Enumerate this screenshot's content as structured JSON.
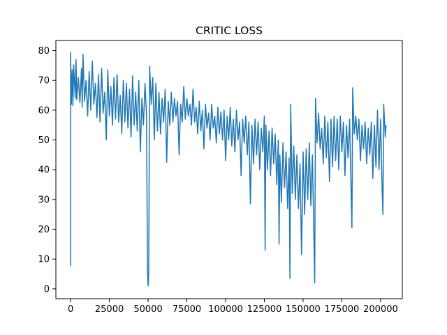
{
  "chart_data": {
    "type": "line",
    "title": "CRITIC LOSS",
    "xlabel": "",
    "ylabel": "",
    "xlim": [
      -9500,
      214000
    ],
    "ylim": [
      -3.3,
      83.4
    ],
    "xticks": [
      0,
      25000,
      50000,
      75000,
      100000,
      125000,
      150000,
      175000,
      200000
    ],
    "xtick_labels": [
      "0",
      "25000",
      "50000",
      "75000",
      "100000",
      "125000",
      "150000",
      "175000",
      "200000"
    ],
    "yticks": [
      0,
      10,
      20,
      30,
      40,
      50,
      60,
      70,
      80
    ],
    "ytick_labels": [
      "0",
      "10",
      "20",
      "30",
      "40",
      "50",
      "60",
      "70",
      "80"
    ],
    "grid": false,
    "series": [
      {
        "color": "#1f77b4",
        "points": [
          [
            0,
            7.7
          ],
          [
            0,
            79.4
          ],
          [
            500,
            62.0
          ],
          [
            1000,
            73.5
          ],
          [
            1500,
            61.5
          ],
          [
            2000,
            75.2
          ],
          [
            3000,
            64.0
          ],
          [
            3500,
            77.0
          ],
          [
            4000,
            63.5
          ],
          [
            5000,
            71.0
          ],
          [
            6000,
            62.5
          ],
          [
            7000,
            74.0
          ],
          [
            7500,
            61.0
          ],
          [
            8000,
            78.8
          ],
          [
            9000,
            63.0
          ],
          [
            10000,
            70.0
          ],
          [
            11000,
            58.0
          ],
          [
            12000,
            73.0
          ],
          [
            13000,
            60.0
          ],
          [
            14000,
            76.5
          ],
          [
            15000,
            62.0
          ],
          [
            16000,
            69.0
          ],
          [
            17000,
            57.5
          ],
          [
            18000,
            72.0
          ],
          [
            19000,
            56.0
          ],
          [
            20000,
            74.0
          ],
          [
            21000,
            59.0
          ],
          [
            22000,
            66.0
          ],
          [
            23000,
            50.0
          ],
          [
            24000,
            73.5
          ],
          [
            25000,
            58.0
          ],
          [
            26000,
            68.0
          ],
          [
            27000,
            55.0
          ],
          [
            28000,
            71.0
          ],
          [
            29000,
            57.0
          ],
          [
            30000,
            72.0
          ],
          [
            31000,
            56.0
          ],
          [
            32000,
            65.0
          ],
          [
            33000,
            52.0
          ],
          [
            34000,
            70.0
          ],
          [
            35000,
            56.0
          ],
          [
            36000,
            69.0
          ],
          [
            37000,
            54.0
          ],
          [
            38000,
            67.0
          ],
          [
            39000,
            51.0
          ],
          [
            40000,
            71.5
          ],
          [
            41000,
            55.0
          ],
          [
            42000,
            66.0
          ],
          [
            43000,
            53.0
          ],
          [
            44000,
            70.0
          ],
          [
            45000,
            46.0
          ],
          [
            46000,
            64.0
          ],
          [
            47000,
            55.0
          ],
          [
            48000,
            69.0
          ],
          [
            49000,
            58.0
          ],
          [
            49600,
            6.0
          ],
          [
            50000,
            1.0
          ],
          [
            50400,
            5.0
          ],
          [
            51000,
            74.8
          ],
          [
            52000,
            62.0
          ],
          [
            53000,
            71.0
          ],
          [
            54000,
            50.0
          ],
          [
            55000,
            69.0
          ],
          [
            56000,
            53.0
          ],
          [
            57000,
            66.0
          ],
          [
            58000,
            52.0
          ],
          [
            59000,
            64.0
          ],
          [
            60000,
            56.0
          ],
          [
            61000,
            67.0
          ],
          [
            62000,
            42.5
          ],
          [
            63000,
            63.0
          ],
          [
            64000,
            55.0
          ],
          [
            65000,
            66.0
          ],
          [
            66000,
            56.0
          ],
          [
            67000,
            64.0
          ],
          [
            68000,
            58.0
          ],
          [
            69000,
            63.0
          ],
          [
            70000,
            45.0
          ],
          [
            71000,
            62.0
          ],
          [
            72000,
            56.0
          ],
          [
            73000,
            68.0
          ],
          [
            74000,
            57.0
          ],
          [
            75000,
            64.0
          ],
          [
            76000,
            58.0
          ],
          [
            77000,
            62.0
          ],
          [
            78000,
            55.0
          ],
          [
            79000,
            67.0
          ],
          [
            80000,
            56.0
          ],
          [
            81000,
            61.0
          ],
          [
            82000,
            52.0
          ],
          [
            83000,
            63.0
          ],
          [
            84000,
            53.0
          ],
          [
            85000,
            60.0
          ],
          [
            86000,
            47.0
          ],
          [
            87000,
            62.0
          ],
          [
            88000,
            54.0
          ],
          [
            89000,
            59.0
          ],
          [
            90000,
            50.0
          ],
          [
            91000,
            62.0
          ],
          [
            92000,
            54.0
          ],
          [
            93000,
            58.0
          ],
          [
            94000,
            49.0
          ],
          [
            95000,
            61.0
          ],
          [
            96000,
            52.0
          ],
          [
            97000,
            59.5
          ],
          [
            98000,
            50.0
          ],
          [
            99000,
            60.0
          ],
          [
            100000,
            43.0
          ],
          [
            101000,
            58.0
          ],
          [
            102000,
            50.0
          ],
          [
            103000,
            61.0
          ],
          [
            104000,
            48.0
          ],
          [
            105000,
            57.0
          ],
          [
            106000,
            46.0
          ],
          [
            107000,
            60.0
          ],
          [
            108000,
            50.0
          ],
          [
            109000,
            56.0
          ],
          [
            110000,
            38.0
          ],
          [
            111000,
            57.0
          ],
          [
            112000,
            49.0
          ],
          [
            113000,
            58.0
          ],
          [
            114000,
            45.0
          ],
          [
            115000,
            56.0
          ],
          [
            116000,
            28.5
          ],
          [
            117000,
            55.0
          ],
          [
            118000,
            42.0
          ],
          [
            119000,
            57.0
          ],
          [
            120000,
            45.0
          ],
          [
            121000,
            56.0
          ],
          [
            122000,
            40.0
          ],
          [
            123000,
            54.0
          ],
          [
            124000,
            46.0
          ],
          [
            125000,
            58.0
          ],
          [
            125500,
            13.0
          ],
          [
            126000,
            55.0
          ],
          [
            127000,
            40.0
          ],
          [
            128000,
            53.0
          ],
          [
            129000,
            38.0
          ],
          [
            130000,
            54.0
          ],
          [
            131000,
            42.0
          ],
          [
            132000,
            52.0
          ],
          [
            133000,
            35.0
          ],
          [
            134000,
            50.0
          ],
          [
            134500,
            15.0
          ],
          [
            135000,
            45.0
          ],
          [
            136000,
            29.0
          ],
          [
            137000,
            49.0
          ],
          [
            138000,
            34.0
          ],
          [
            139000,
            46.0
          ],
          [
            140000,
            27.0
          ],
          [
            141000,
            44.0
          ],
          [
            141500,
            3.5
          ],
          [
            142000,
            62.0
          ],
          [
            143000,
            32.0
          ],
          [
            144000,
            48.0
          ],
          [
            145000,
            30.0
          ],
          [
            146000,
            45.0
          ],
          [
            147000,
            27.0
          ],
          [
            148000,
            42.0
          ],
          [
            149000,
            11.5
          ],
          [
            150000,
            46.0
          ],
          [
            151000,
            25.0
          ],
          [
            152000,
            47.0
          ],
          [
            153000,
            30.0
          ],
          [
            154000,
            49.0
          ],
          [
            155000,
            28.0
          ],
          [
            156000,
            45.0
          ],
          [
            157000,
            16.0
          ],
          [
            157500,
            2.0
          ],
          [
            158000,
            64.0
          ],
          [
            159000,
            49.0
          ],
          [
            160000,
            59.0
          ],
          [
            161000,
            47.0
          ],
          [
            162000,
            54.0
          ],
          [
            163000,
            42.0
          ],
          [
            164000,
            58.0
          ],
          [
            165000,
            44.0
          ],
          [
            166000,
            56.0
          ],
          [
            167000,
            36.0
          ],
          [
            168000,
            57.0
          ],
          [
            169000,
            41.0
          ],
          [
            170000,
            58.0
          ],
          [
            171000,
            43.0
          ],
          [
            172000,
            57.0
          ],
          [
            173000,
            40.0
          ],
          [
            174000,
            58.0
          ],
          [
            175000,
            46.0
          ],
          [
            176000,
            56.0
          ],
          [
            177000,
            38.0
          ],
          [
            178000,
            55.0
          ],
          [
            179000,
            44.0
          ],
          [
            180000,
            57.0
          ],
          [
            181000,
            32.0
          ],
          [
            181500,
            20.5
          ],
          [
            182000,
            67.5
          ],
          [
            183000,
            52.0
          ],
          [
            184000,
            58.0
          ],
          [
            185000,
            50.0
          ],
          [
            186000,
            57.0
          ],
          [
            187000,
            43.0
          ],
          [
            188000,
            55.0
          ],
          [
            189000,
            47.0
          ],
          [
            190000,
            56.0
          ],
          [
            191000,
            42.0
          ],
          [
            192000,
            54.0
          ],
          [
            193000,
            45.0
          ],
          [
            194000,
            56.0
          ],
          [
            195000,
            37.0
          ],
          [
            196000,
            55.0
          ],
          [
            197000,
            41.0
          ],
          [
            198000,
            60.0
          ],
          [
            199000,
            40.0
          ],
          [
            200000,
            57.0
          ],
          [
            201000,
            33.0
          ],
          [
            201500,
            25.0
          ],
          [
            202000,
            62.0
          ],
          [
            203000,
            51.0
          ],
          [
            203500,
            55.0
          ]
        ]
      }
    ]
  }
}
